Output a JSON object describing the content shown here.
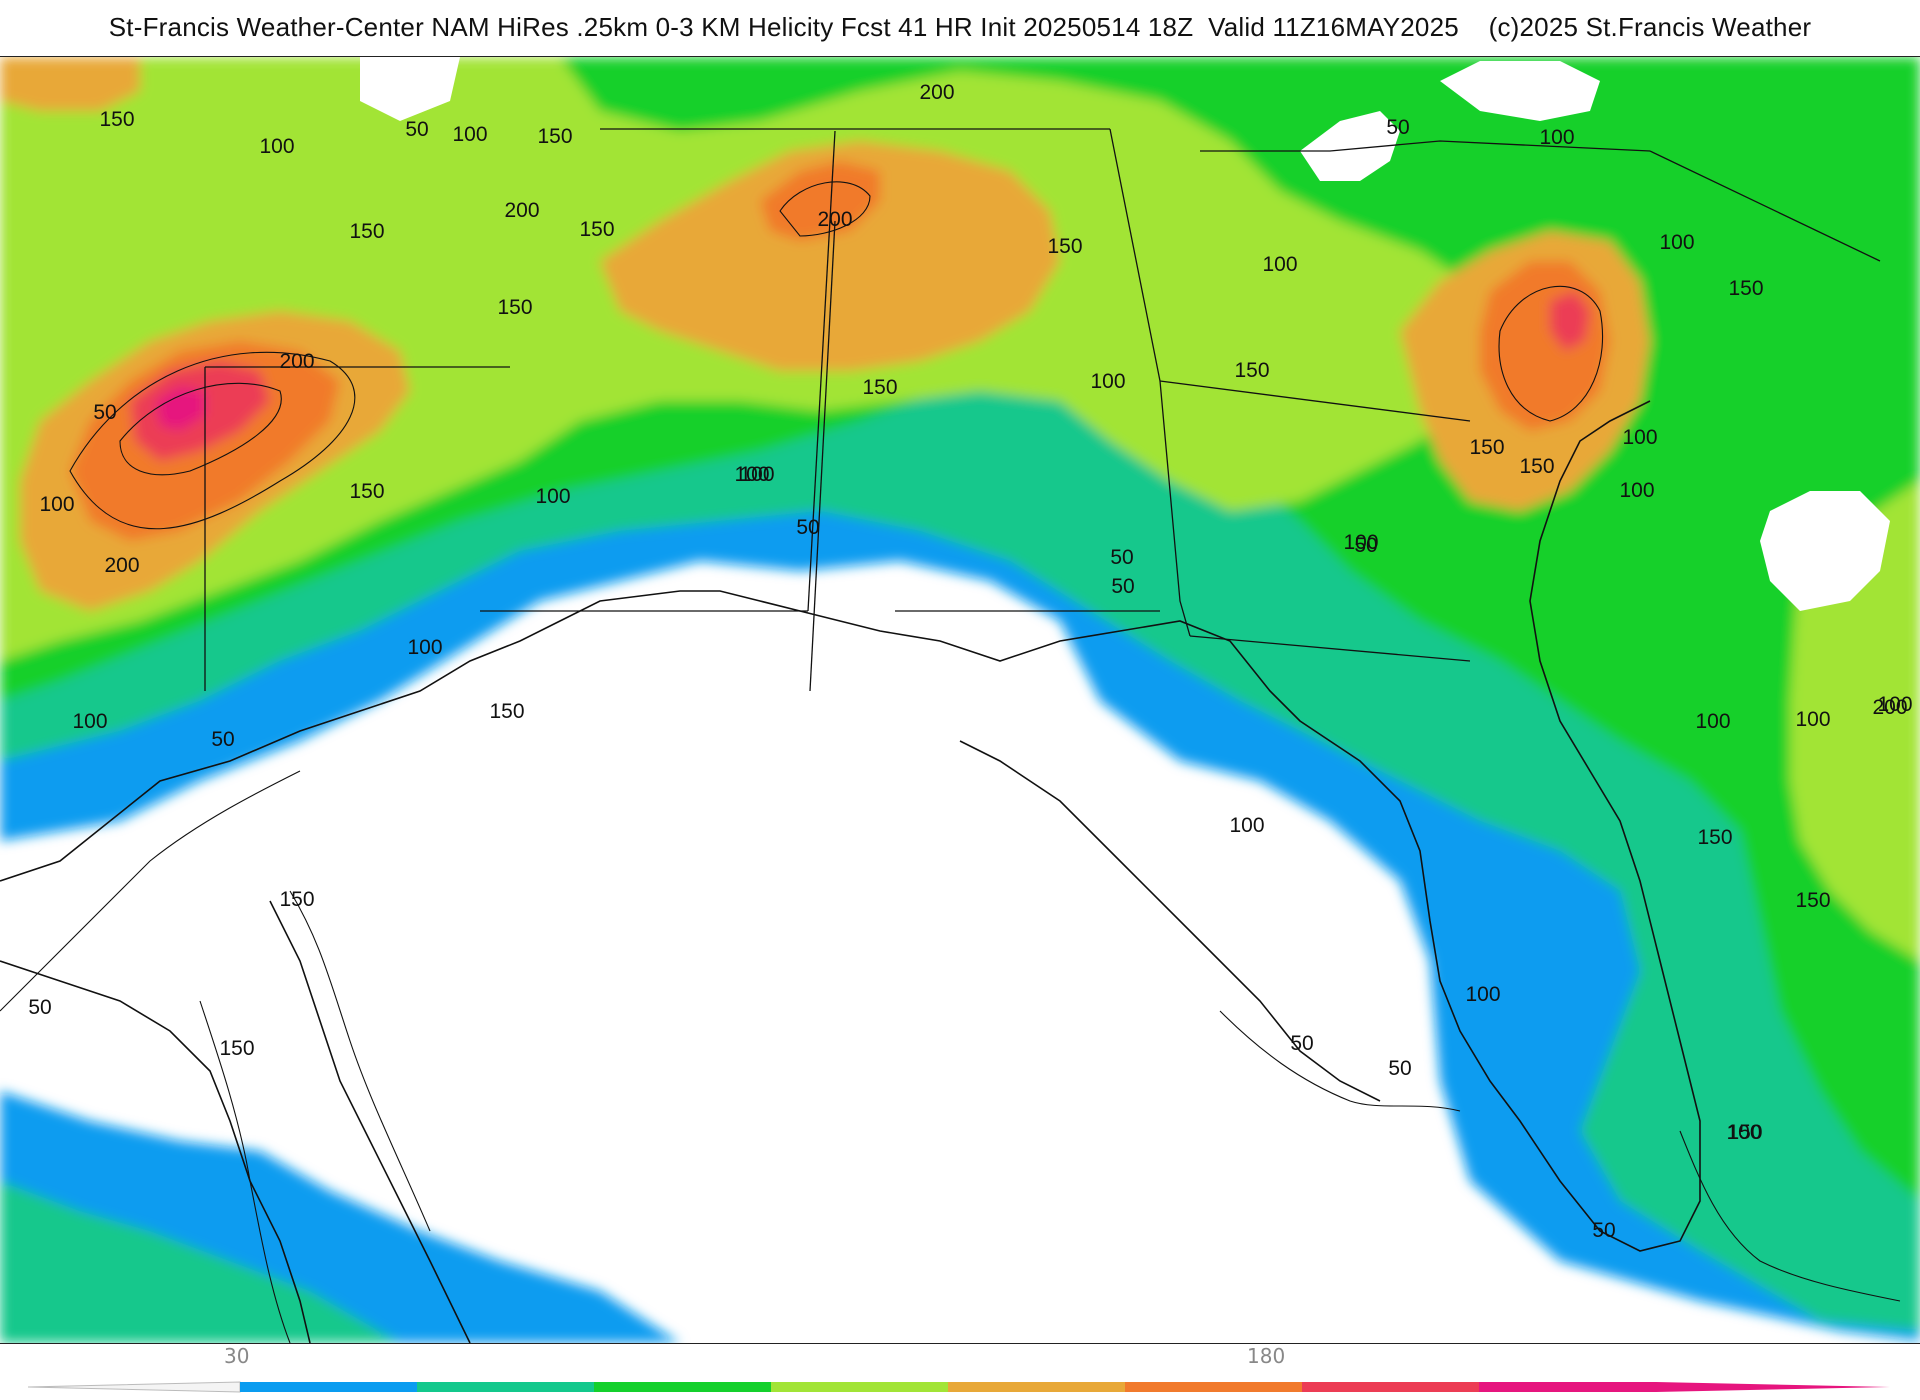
{
  "header": {
    "title": "St-Francis Weather-Center NAM HiRes .25km 0-3 KM Helicity Fcst 41 HR Init 20250514 18Z  Valid 11Z16MAY2025    (c)2025 St.Francis Weather"
  },
  "colors": {
    "below": "#ffffff",
    "bands": [
      "#0a9cf0",
      "#13c88c",
      "#14d02c",
      "#a2e436",
      "#e8a838",
      "#f17a2c",
      "#ec3c54",
      "#e6157e"
    ],
    "land_fill": "#ffffff",
    "line": "#111111"
  },
  "colorbar": {
    "tick_labels": [
      "30",
      "180"
    ]
  },
  "contour_labels": [
    "150",
    "100",
    "50",
    "100",
    "150",
    "200",
    "150",
    "150",
    "200",
    "200",
    "150",
    "100",
    "150",
    "100",
    "50",
    "100",
    "100",
    "150",
    "200",
    "50",
    "100",
    "200",
    "150",
    "100",
    "150",
    "50",
    "100",
    "50",
    "100",
    "150",
    "150",
    "150",
    "100",
    "100",
    "100",
    "150",
    "50",
    "100",
    "50",
    "50",
    "100",
    "50",
    "150",
    "100",
    "100",
    "100",
    "150",
    "50",
    "100",
    "200",
    "150",
    "100",
    "150",
    "50",
    "100",
    "50",
    "150"
  ]
}
